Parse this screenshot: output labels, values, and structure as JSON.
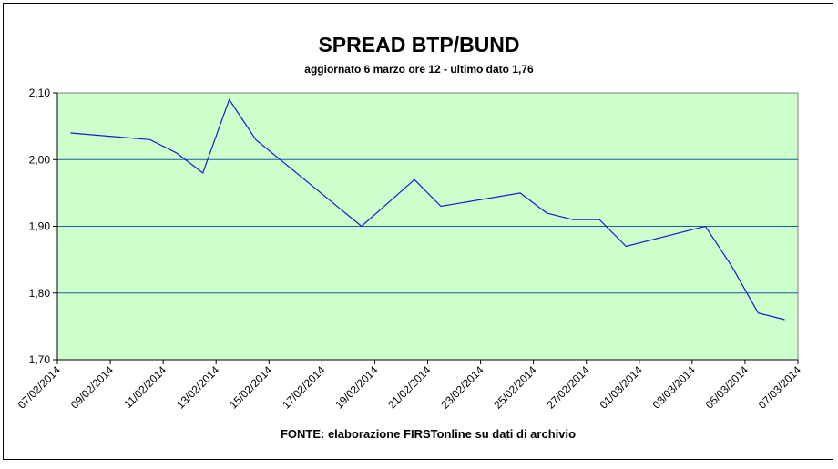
{
  "chart_data": {
    "type": "line",
    "title": "SPREAD BTP/BUND",
    "subtitle": "aggiornato 6 marzo ore 12 - ultimo dato 1,76",
    "x_label": "FONTE: elaborazione FIRSTonline su dati di archivio",
    "x": [
      "07/02/2014",
      "10/02/2014",
      "11/02/2014",
      "12/02/2014",
      "13/02/2014",
      "14/02/2014",
      "18/02/2014",
      "20/02/2014",
      "21/02/2014",
      "24/02/2014",
      "25/02/2014",
      "26/02/2014",
      "27/02/2014",
      "28/02/2014",
      "03/03/2014",
      "04/03/2014",
      "05/03/2014",
      "06/03/2014"
    ],
    "values": [
      2.04,
      2.03,
      2.01,
      1.98,
      2.09,
      2.03,
      1.9,
      1.97,
      1.93,
      1.95,
      1.92,
      1.91,
      1.91,
      1.87,
      1.9,
      1.84,
      1.77,
      1.76
    ],
    "color": "#1a1acc",
    "xlim": [
      "07/02/2014",
      "07/03/2014"
    ],
    "xticks": [
      "07/02/2014",
      "09/02/2014",
      "11/02/2014",
      "13/02/2014",
      "15/02/2014",
      "17/02/2014",
      "19/02/2014",
      "21/02/2014",
      "23/02/2014",
      "25/02/2014",
      "27/02/2014",
      "01/03/2014",
      "03/03/2014",
      "05/03/2014",
      "07/03/2014"
    ],
    "ylim": [
      1.7,
      2.1
    ],
    "yticks": [
      {
        "value": 1.7,
        "label": "1,70"
      },
      {
        "value": 1.8,
        "label": "1,80"
      },
      {
        "value": 1.9,
        "label": "1,90"
      },
      {
        "value": 2.0,
        "label": "2,00"
      },
      {
        "value": 2.1,
        "label": "2,10"
      }
    ],
    "grid": true
  }
}
